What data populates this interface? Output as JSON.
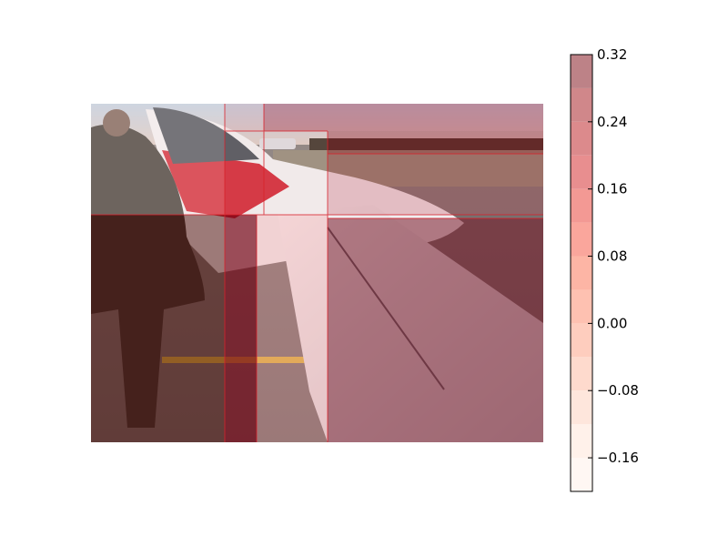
{
  "chart_data": {
    "type": "heatmap",
    "title": "",
    "xlabel": "",
    "ylabel": "",
    "background_image": "photo of a person leaning into the cockpit of a small white airplane with a red nose stripe, wing in foreground, airfield in background",
    "colormap": "Reds",
    "colorbar": {
      "min": -0.2,
      "max": 0.32,
      "levels": [
        -0.2,
        -0.16,
        -0.12,
        -0.08,
        -0.04,
        0.0,
        0.04,
        0.08,
        0.12,
        0.16,
        0.2,
        0.24,
        0.28,
        0.32
      ],
      "tick_values": [
        0.32,
        0.24,
        0.16,
        0.08,
        0.0,
        -0.08,
        -0.16
      ],
      "tick_labels": [
        "0.32",
        "0.24",
        "0.16",
        "0.08",
        "0.00",
        "−0.08",
        "−0.16"
      ],
      "placement": "right"
    }
  }
}
